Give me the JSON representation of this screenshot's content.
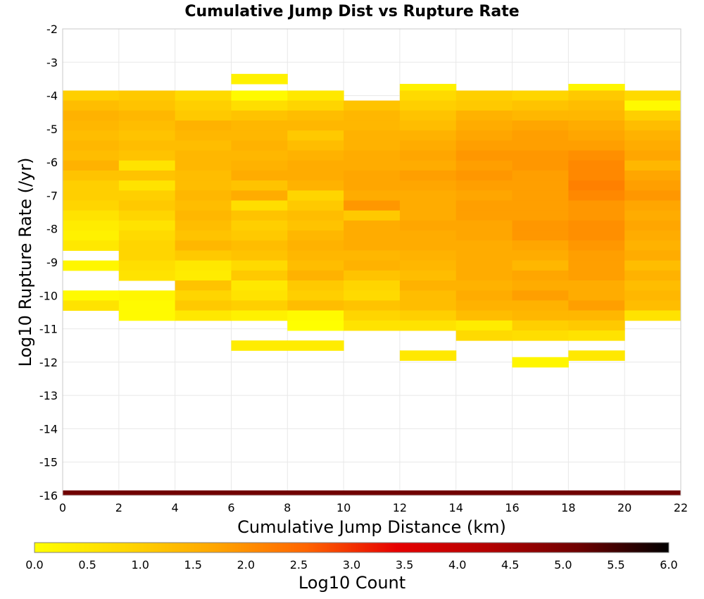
{
  "chart_data": {
    "type": "heatmap",
    "title": "Cumulative Jump Dist vs Rupture Rate",
    "xlabel": "Cumulative Jump Distance (km)",
    "ylabel": "Log10 Rupture Rate (/yr)",
    "xlim": [
      0,
      22
    ],
    "ylim": [
      -16,
      -2
    ],
    "x_ticks": [
      "0",
      "2",
      "4",
      "6",
      "8",
      "10",
      "12",
      "14",
      "16",
      "18",
      "20",
      "22"
    ],
    "y_ticks": [
      "-2",
      "-3",
      "-4",
      "-5",
      "-6",
      "-7",
      "-8",
      "-9",
      "-10",
      "-11",
      "-12",
      "-13",
      "-14",
      "-15",
      "-16"
    ],
    "grid": true,
    "x_bin_width": 2,
    "y_bin_height": 0.3,
    "columns": [
      {
        "x": 1,
        "cells": [
          [
            -4.0,
            1.0
          ],
          [
            -4.3,
            1.3
          ],
          [
            -4.6,
            1.5
          ],
          [
            -4.9,
            1.4
          ],
          [
            -5.2,
            1.3
          ],
          [
            -5.5,
            1.4
          ],
          [
            -5.8,
            1.3
          ],
          [
            -6.1,
            1.5
          ],
          [
            -6.4,
            1.2
          ],
          [
            -6.7,
            1.0
          ],
          [
            -7.0,
            1.0
          ],
          [
            -7.3,
            0.9
          ],
          [
            -7.6,
            0.6
          ],
          [
            -7.9,
            0.4
          ],
          [
            -8.2,
            0.3
          ],
          [
            -8.5,
            0.5
          ],
          [
            -9.1,
            0.2
          ],
          [
            -10.0,
            0.1
          ],
          [
            -10.3,
            0.6
          ]
        ]
      },
      {
        "x": 3,
        "cells": [
          [
            -4.0,
            1.1
          ],
          [
            -4.3,
            1.2
          ],
          [
            -4.6,
            1.4
          ],
          [
            -4.9,
            1.3
          ],
          [
            -5.2,
            1.2
          ],
          [
            -5.5,
            1.3
          ],
          [
            -5.8,
            1.2
          ],
          [
            -6.1,
            0.6
          ],
          [
            -6.4,
            1.2
          ],
          [
            -6.7,
            0.6
          ],
          [
            -7.0,
            1.0
          ],
          [
            -7.3,
            1.1
          ],
          [
            -7.6,
            0.9
          ],
          [
            -7.9,
            0.6
          ],
          [
            -8.2,
            0.8
          ],
          [
            -8.5,
            0.9
          ],
          [
            -8.8,
            0.9
          ],
          [
            -9.1,
            0.7
          ],
          [
            -9.4,
            0.6
          ],
          [
            -10.0,
            0.2
          ],
          [
            -10.3,
            0.1
          ],
          [
            -10.6,
            0.1
          ]
        ]
      },
      {
        "x": 5,
        "cells": [
          [
            -4.0,
            0.8
          ],
          [
            -4.3,
            1.0
          ],
          [
            -4.6,
            1.1
          ],
          [
            -4.9,
            1.5
          ],
          [
            -5.2,
            1.4
          ],
          [
            -5.5,
            1.3
          ],
          [
            -5.8,
            1.4
          ],
          [
            -6.1,
            1.4
          ],
          [
            -6.4,
            1.3
          ],
          [
            -6.7,
            1.3
          ],
          [
            -7.0,
            1.4
          ],
          [
            -7.3,
            1.3
          ],
          [
            -7.6,
            1.4
          ],
          [
            -7.9,
            1.3
          ],
          [
            -8.2,
            1.2
          ],
          [
            -8.5,
            1.4
          ],
          [
            -8.8,
            1.1
          ],
          [
            -9.1,
            0.5
          ],
          [
            -9.4,
            0.4
          ],
          [
            -9.7,
            1.2
          ],
          [
            -10.0,
            0.9
          ],
          [
            -10.3,
            1.1
          ],
          [
            -10.6,
            0.5
          ]
        ]
      },
      {
        "x": 7,
        "cells": [
          [
            -3.5,
            0.3
          ],
          [
            -4.0,
            0.1
          ],
          [
            -4.3,
            0.7
          ],
          [
            -4.6,
            1.2
          ],
          [
            -4.9,
            1.4
          ],
          [
            -5.2,
            1.4
          ],
          [
            -5.5,
            1.5
          ],
          [
            -5.8,
            1.4
          ],
          [
            -6.1,
            1.5
          ],
          [
            -6.4,
            1.6
          ],
          [
            -6.7,
            1.2
          ],
          [
            -7.0,
            1.6
          ],
          [
            -7.3,
            0.7
          ],
          [
            -7.6,
            1.2
          ],
          [
            -7.9,
            1.0
          ],
          [
            -8.2,
            1.1
          ],
          [
            -8.5,
            1.3
          ],
          [
            -8.8,
            1.2
          ],
          [
            -9.1,
            0.8
          ],
          [
            -9.4,
            1.1
          ],
          [
            -9.7,
            0.5
          ],
          [
            -10.0,
            0.6
          ],
          [
            -10.3,
            1.0
          ],
          [
            -10.6,
            0.3
          ],
          [
            -11.5,
            0.4
          ]
        ]
      },
      {
        "x": 9,
        "cells": [
          [
            -4.0,
            0.5
          ],
          [
            -4.3,
            0.9
          ],
          [
            -4.6,
            1.3
          ],
          [
            -4.9,
            1.4
          ],
          [
            -5.2,
            1.1
          ],
          [
            -5.5,
            1.3
          ],
          [
            -5.8,
            1.5
          ],
          [
            -6.1,
            1.6
          ],
          [
            -6.4,
            1.6
          ],
          [
            -6.7,
            1.5
          ],
          [
            -7.0,
            0.9
          ],
          [
            -7.3,
            1.1
          ],
          [
            -7.6,
            1.3
          ],
          [
            -7.9,
            1.2
          ],
          [
            -8.2,
            1.4
          ],
          [
            -8.5,
            1.5
          ],
          [
            -8.8,
            1.4
          ],
          [
            -9.1,
            1.3
          ],
          [
            -9.4,
            1.5
          ],
          [
            -9.7,
            1.1
          ],
          [
            -10.0,
            1.0
          ],
          [
            -10.3,
            1.3
          ],
          [
            -10.6,
            0.1
          ],
          [
            -10.9,
            0.0
          ],
          [
            -11.5,
            0.4
          ]
        ]
      },
      {
        "x": 11,
        "cells": [
          [
            -4.3,
            1.2
          ],
          [
            -4.6,
            1.4
          ],
          [
            -4.9,
            1.4
          ],
          [
            -5.2,
            1.5
          ],
          [
            -5.5,
            1.5
          ],
          [
            -5.8,
            1.6
          ],
          [
            -6.1,
            1.6
          ],
          [
            -6.4,
            1.7
          ],
          [
            -6.7,
            1.7
          ],
          [
            -7.0,
            1.6
          ],
          [
            -7.3,
            1.9
          ],
          [
            -7.6,
            1.1
          ],
          [
            -7.9,
            1.6
          ],
          [
            -8.2,
            1.6
          ],
          [
            -8.5,
            1.6
          ],
          [
            -8.8,
            1.4
          ],
          [
            -9.1,
            1.5
          ],
          [
            -9.4,
            1.2
          ],
          [
            -9.7,
            0.9
          ],
          [
            -10.0,
            0.8
          ],
          [
            -10.3,
            1.2
          ],
          [
            -10.6,
            0.9
          ],
          [
            -10.9,
            0.6
          ]
        ]
      },
      {
        "x": 13,
        "cells": [
          [
            -3.8,
            0.3
          ],
          [
            -4.0,
            0.8
          ],
          [
            -4.3,
            1.0
          ],
          [
            -4.6,
            1.2
          ],
          [
            -4.9,
            1.3
          ],
          [
            -5.2,
            1.5
          ],
          [
            -5.5,
            1.6
          ],
          [
            -5.8,
            1.7
          ],
          [
            -6.1,
            1.6
          ],
          [
            -6.4,
            1.8
          ],
          [
            -6.7,
            1.7
          ],
          [
            -7.0,
            1.6
          ],
          [
            -7.3,
            1.6
          ],
          [
            -7.6,
            1.6
          ],
          [
            -7.9,
            1.7
          ],
          [
            -8.2,
            1.6
          ],
          [
            -8.5,
            1.6
          ],
          [
            -8.8,
            1.5
          ],
          [
            -9.1,
            1.4
          ],
          [
            -9.4,
            1.3
          ],
          [
            -9.7,
            1.5
          ],
          [
            -10.0,
            1.3
          ],
          [
            -10.3,
            1.3
          ],
          [
            -10.6,
            1.0
          ],
          [
            -10.9,
            0.6
          ],
          [
            -11.8,
            0.5
          ]
        ]
      },
      {
        "x": 15,
        "cells": [
          [
            -4.0,
            1.0
          ],
          [
            -4.3,
            1.1
          ],
          [
            -4.6,
            1.5
          ],
          [
            -4.9,
            1.6
          ],
          [
            -5.2,
            1.7
          ],
          [
            -5.5,
            1.8
          ],
          [
            -5.8,
            1.9
          ],
          [
            -6.1,
            1.8
          ],
          [
            -6.4,
            1.9
          ],
          [
            -6.7,
            1.8
          ],
          [
            -7.0,
            1.7
          ],
          [
            -7.3,
            1.8
          ],
          [
            -7.6,
            1.8
          ],
          [
            -7.9,
            1.7
          ],
          [
            -8.2,
            1.7
          ],
          [
            -8.5,
            1.6
          ],
          [
            -8.8,
            1.6
          ],
          [
            -9.1,
            1.6
          ],
          [
            -9.4,
            1.6
          ],
          [
            -9.7,
            1.5
          ],
          [
            -10.0,
            1.6
          ],
          [
            -10.3,
            1.5
          ],
          [
            -10.6,
            1.3
          ],
          [
            -10.9,
            0.4
          ],
          [
            -11.2,
            0.8
          ]
        ]
      },
      {
        "x": 17,
        "cells": [
          [
            -4.0,
            0.9
          ],
          [
            -4.3,
            1.2
          ],
          [
            -4.6,
            1.4
          ],
          [
            -4.9,
            1.7
          ],
          [
            -5.2,
            1.8
          ],
          [
            -5.5,
            1.8
          ],
          [
            -5.8,
            1.9
          ],
          [
            -6.1,
            1.9
          ],
          [
            -6.4,
            1.8
          ],
          [
            -6.7,
            1.8
          ],
          [
            -7.0,
            1.8
          ],
          [
            -7.3,
            1.8
          ],
          [
            -7.6,
            1.8
          ],
          [
            -7.9,
            1.9
          ],
          [
            -8.2,
            1.9
          ],
          [
            -8.5,
            1.7
          ],
          [
            -8.8,
            1.6
          ],
          [
            -9.1,
            1.4
          ],
          [
            -9.4,
            1.7
          ],
          [
            -9.7,
            1.6
          ],
          [
            -10.0,
            1.8
          ],
          [
            -10.3,
            1.5
          ],
          [
            -10.6,
            1.4
          ],
          [
            -10.9,
            1.0
          ],
          [
            -11.2,
            0.7
          ],
          [
            -12.0,
            0.2
          ]
        ]
      },
      {
        "x": 19,
        "cells": [
          [
            -3.8,
            0.2
          ],
          [
            -4.0,
            1.1
          ],
          [
            -4.3,
            1.3
          ],
          [
            -4.6,
            1.4
          ],
          [
            -4.9,
            1.6
          ],
          [
            -5.2,
            1.7
          ],
          [
            -5.5,
            1.8
          ],
          [
            -5.8,
            2.0
          ],
          [
            -6.1,
            2.1
          ],
          [
            -6.4,
            2.1
          ],
          [
            -6.7,
            2.2
          ],
          [
            -7.0,
            2.1
          ],
          [
            -7.3,
            1.9
          ],
          [
            -7.6,
            1.9
          ],
          [
            -7.9,
            2.0
          ],
          [
            -8.2,
            2.0
          ],
          [
            -8.5,
            1.9
          ],
          [
            -8.8,
            1.8
          ],
          [
            -9.1,
            1.8
          ],
          [
            -9.4,
            1.8
          ],
          [
            -9.7,
            1.6
          ],
          [
            -10.0,
            1.6
          ],
          [
            -10.3,
            1.8
          ],
          [
            -10.6,
            1.4
          ],
          [
            -10.9,
            1.1
          ],
          [
            -11.2,
            0.6
          ],
          [
            -11.8,
            0.5
          ]
        ]
      },
      {
        "x": 21,
        "cells": [
          [
            -4.0,
            0.8
          ],
          [
            -4.3,
            0.1
          ],
          [
            -4.6,
            1.0
          ],
          [
            -4.9,
            1.3
          ],
          [
            -5.2,
            1.5
          ],
          [
            -5.5,
            1.6
          ],
          [
            -5.8,
            1.7
          ],
          [
            -6.1,
            1.4
          ],
          [
            -6.4,
            1.7
          ],
          [
            -6.7,
            1.8
          ],
          [
            -7.0,
            1.9
          ],
          [
            -7.3,
            1.7
          ],
          [
            -7.6,
            1.6
          ],
          [
            -7.9,
            1.7
          ],
          [
            -8.2,
            1.6
          ],
          [
            -8.5,
            1.5
          ],
          [
            -8.8,
            1.6
          ],
          [
            -9.1,
            1.3
          ],
          [
            -9.4,
            1.5
          ],
          [
            -9.7,
            1.3
          ],
          [
            -10.0,
            1.4
          ],
          [
            -10.3,
            1.3
          ],
          [
            -10.6,
            0.6
          ]
        ]
      }
    ],
    "bottom_band": {
      "y": -16.0,
      "value": 5.1
    },
    "colorbar": {
      "label": "Log10 Count",
      "range": [
        0,
        6
      ],
      "ticks": [
        "0.0",
        "0.5",
        "1.0",
        "1.5",
        "2.0",
        "2.5",
        "3.0",
        "3.5",
        "4.0",
        "4.5",
        "5.0",
        "5.5",
        "6.0"
      ],
      "colors": [
        "#ffff00",
        "#ffd700",
        "#ffa500",
        "#ff6400",
        "#e60000",
        "#b40000",
        "#6e0000",
        "#000000"
      ]
    }
  }
}
